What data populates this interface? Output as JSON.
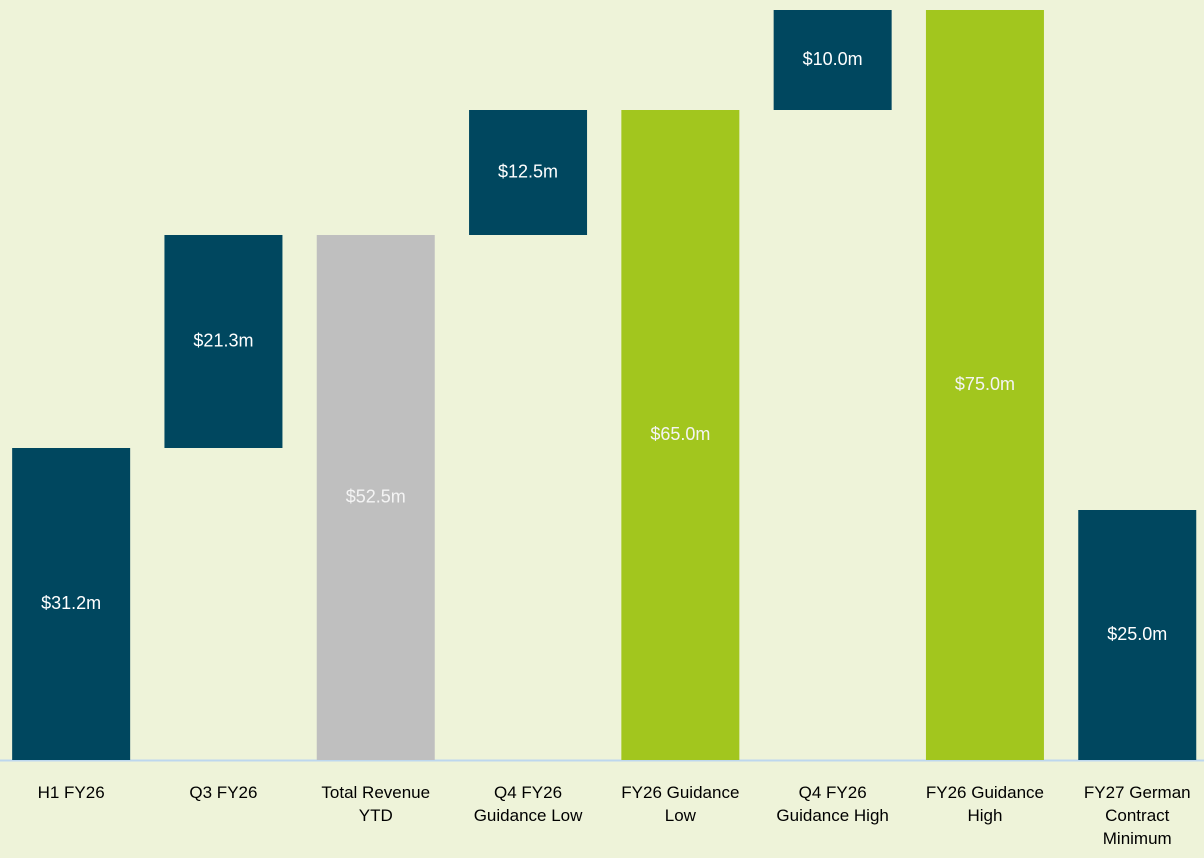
{
  "chart_data": {
    "type": "waterfall",
    "categories": [
      "H1 FY26",
      "Q3 FY26",
      "Total Revenue YTD",
      "Q4 FY26 Guidance Low",
      "FY26 Guidance Low",
      "Q4 FY26 Guidance High",
      "FY26 Guidance High",
      "FY27 German Contract Minimum"
    ],
    "values": [
      31.2,
      21.3,
      52.5,
      12.5,
      65.0,
      10.0,
      75.0,
      25.0
    ],
    "value_labels": [
      "$31.2m",
      "$21.3m",
      "$52.5m",
      "$12.5m",
      "$65.0m",
      "$10.0m",
      "$75.0m",
      "$25.0m"
    ],
    "measure": [
      "absolute",
      "relative",
      "total",
      "relative",
      "total",
      "relative",
      "total",
      "absolute"
    ],
    "colors": [
      "#00475f",
      "#00475f",
      "#bfbfbf",
      "#00475f",
      "#a2c61e",
      "#00475f",
      "#a2c61e",
      "#00475f"
    ],
    "label_colors": [
      "#ffffff",
      "#ffffff",
      "#f4f4f4",
      "#ffffff",
      "#f4f4f4",
      "#ffffff",
      "#f4f4f4",
      "#ffffff"
    ]
  }
}
